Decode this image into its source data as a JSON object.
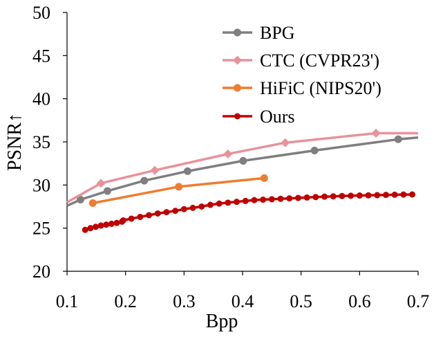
{
  "chart_data": {
    "type": "line",
    "title": "",
    "xlabel": "Bpp",
    "ylabel": "PSNR↑",
    "xlim": [
      0.1,
      0.7
    ],
    "ylim": [
      20,
      50
    ],
    "xticks": [
      0.1,
      0.2,
      0.3,
      0.4,
      0.5,
      0.6,
      0.7
    ],
    "xtick_labels": [
      "0.1",
      "0.2",
      "0.3",
      "0.4",
      "0.5",
      "0.6",
      "0.7"
    ],
    "yticks": [
      20,
      25,
      30,
      35,
      40,
      45,
      50
    ],
    "ytick_labels": [
      "20",
      "25",
      "30",
      "35",
      "40",
      "45",
      "50"
    ],
    "grid": false,
    "legend_position": "top-right",
    "series": [
      {
        "name": "BPG",
        "color": "#7f7f7f",
        "marker": "circle",
        "x": [
          0.1,
          0.123,
          0.169,
          0.232,
          0.306,
          0.401,
          0.523,
          0.666,
          0.7
        ],
        "y": [
          27.6,
          28.3,
          29.3,
          30.5,
          31.6,
          32.8,
          34.0,
          35.3,
          35.5
        ],
        "marker_indices": [
          1,
          2,
          3,
          4,
          5,
          6,
          7
        ]
      },
      {
        "name": "CTC (CVPR23')",
        "color": "#e8929c",
        "marker": "diamond",
        "x": [
          0.1,
          0.158,
          0.25,
          0.375,
          0.473,
          0.628,
          0.7
        ],
        "y": [
          28.0,
          30.2,
          31.7,
          33.6,
          34.9,
          36.0,
          36.0
        ],
        "marker_indices": [
          1,
          2,
          3,
          4,
          5
        ]
      },
      {
        "name": "HiFiC (NIPS20')",
        "color": "#ed7d31",
        "marker": "circle",
        "x": [
          0.144,
          0.291,
          0.437
        ],
        "y": [
          27.9,
          29.8,
          30.8
        ],
        "marker_indices": [
          0,
          1,
          2
        ]
      },
      {
        "name": "Ours",
        "color": "#c00000",
        "marker": "circle",
        "x": [
          0.131,
          0.14,
          0.149,
          0.158,
          0.167,
          0.176,
          0.185,
          0.194,
          0.196,
          0.21,
          0.225,
          0.24,
          0.255,
          0.27,
          0.285,
          0.3,
          0.315,
          0.33,
          0.345,
          0.36,
          0.375,
          0.39,
          0.405,
          0.42,
          0.435,
          0.45,
          0.465,
          0.48,
          0.495,
          0.51,
          0.525,
          0.54,
          0.555,
          0.57,
          0.585,
          0.6,
          0.615,
          0.63,
          0.645,
          0.66,
          0.675,
          0.69
        ],
        "y": [
          24.8,
          25.0,
          25.15,
          25.3,
          25.4,
          25.5,
          25.6,
          25.75,
          25.9,
          26.1,
          26.3,
          26.5,
          26.7,
          26.85,
          27.0,
          27.2,
          27.35,
          27.5,
          27.7,
          27.85,
          27.95,
          28.05,
          28.15,
          28.25,
          28.3,
          28.35,
          28.4,
          28.45,
          28.5,
          28.55,
          28.6,
          28.65,
          28.68,
          28.72,
          28.75,
          28.78,
          28.8,
          28.82,
          28.85,
          28.87,
          28.89,
          28.9
        ],
        "marker_indices": "all"
      }
    ]
  }
}
